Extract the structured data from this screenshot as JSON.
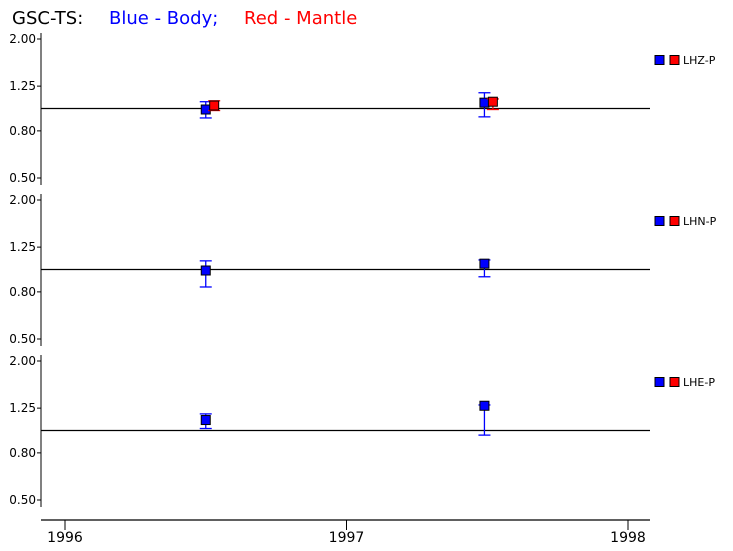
{
  "title": {
    "prefix": "GSC-TS:",
    "blue_text": "Blue - Body;",
    "red_text": "Red - Mantle"
  },
  "colors": {
    "body": "#0000ff",
    "mantle": "#ff0000",
    "axis": "#000000"
  },
  "chart_data": {
    "type": "scatter",
    "x_axis": {
      "range": [
        1996,
        1998.08
      ],
      "ticks": [
        1996,
        1997,
        1998
      ],
      "tick_labels": [
        "1996",
        "1997",
        "1998"
      ]
    },
    "panels": [
      {
        "label": "LHZ-P",
        "y_scale": "log",
        "y_range": [
          0.5,
          2.0
        ],
        "y_ticks": [
          2.0,
          1.25,
          0.8,
          0.5
        ],
        "y_tick_labels": [
          "2.00",
          "1.25",
          "0.80",
          "0.50"
        ],
        "reference_line": 1.0,
        "series": [
          {
            "name": "Body",
            "color": "#0000ff",
            "points": [
              {
                "x": 1996.5,
                "y": 0.99,
                "err_low": 0.91,
                "err_high": 1.07
              },
              {
                "x": 1997.49,
                "y": 1.06,
                "err_low": 0.92,
                "err_high": 1.17
              }
            ]
          },
          {
            "name": "Mantle",
            "color": "#ff0000",
            "points": [
              {
                "x": 1996.53,
                "y": 1.03,
                "err_low": 0.98,
                "err_high": 1.08
              },
              {
                "x": 1997.52,
                "y": 1.07,
                "err_low": 0.99,
                "err_high": 1.1
              }
            ]
          }
        ]
      },
      {
        "label": "LHN-P",
        "y_scale": "log",
        "y_range": [
          0.5,
          2.0
        ],
        "y_ticks": [
          2.0,
          1.25,
          0.8,
          0.5
        ],
        "y_tick_labels": [
          "2.00",
          "1.25",
          "0.80",
          "0.50"
        ],
        "reference_line": 1.0,
        "series": [
          {
            "name": "Body",
            "color": "#0000ff",
            "points": [
              {
                "x": 1996.5,
                "y": 0.99,
                "err_low": 0.84,
                "err_high": 1.09
              },
              {
                "x": 1997.49,
                "y": 1.06,
                "err_low": 0.93,
                "err_high": 1.1
              }
            ]
          },
          {
            "name": "Mantle",
            "color": "#ff0000",
            "points": []
          }
        ]
      },
      {
        "label": "LHE-P",
        "y_scale": "log",
        "y_range": [
          0.5,
          2.0
        ],
        "y_ticks": [
          2.0,
          1.25,
          0.8,
          0.5
        ],
        "y_tick_labels": [
          "2.00",
          "1.25",
          "0.80",
          "0.50"
        ],
        "reference_line": 1.0,
        "series": [
          {
            "name": "Body",
            "color": "#0000ff",
            "points": [
              {
                "x": 1996.5,
                "y": 1.11,
                "err_low": 1.02,
                "err_high": 1.18
              },
              {
                "x": 1997.49,
                "y": 1.28,
                "err_low": 0.955,
                "err_high": 1.29
              }
            ]
          },
          {
            "name": "Mantle",
            "color": "#ff0000",
            "points": []
          }
        ]
      }
    ]
  }
}
